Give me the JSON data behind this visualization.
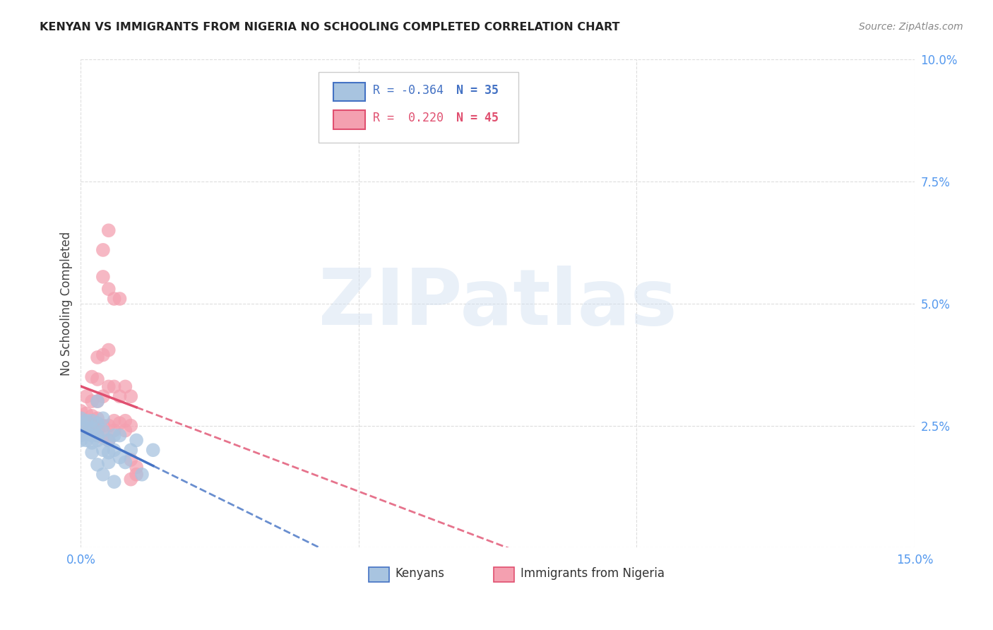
{
  "title": "KENYAN VS IMMIGRANTS FROM NIGERIA NO SCHOOLING COMPLETED CORRELATION CHART",
  "source": "Source: ZipAtlas.com",
  "ylabel": "No Schooling Completed",
  "xlabel_kenyans": "Kenyans",
  "xlabel_nigeria": "Immigrants from Nigeria",
  "xlim": [
    0.0,
    0.15
  ],
  "ylim": [
    0.0,
    0.1
  ],
  "xtick_vals": [
    0.0,
    0.05,
    0.1,
    0.15
  ],
  "xtick_labels": [
    "0.0%",
    "",
    "",
    "15.0%"
  ],
  "ytick_vals": [
    0.0,
    0.025,
    0.05,
    0.075,
    0.1
  ],
  "ytick_labels": [
    "",
    "2.5%",
    "5.0%",
    "7.5%",
    "10.0%"
  ],
  "R_kenya": -0.364,
  "N_kenya": 35,
  "R_nigeria": 0.22,
  "N_nigeria": 45,
  "kenya_color": "#a8c4e0",
  "nigeria_color": "#f4a0b0",
  "kenya_line_color": "#4472c4",
  "nigeria_line_color": "#e05070",
  "kenya_scatter": [
    [
      0.0,
      0.0265
    ],
    [
      0.0,
      0.0255
    ],
    [
      0.0,
      0.023
    ],
    [
      0.0,
      0.022
    ],
    [
      0.001,
      0.026
    ],
    [
      0.001,
      0.0245
    ],
    [
      0.001,
      0.0235
    ],
    [
      0.001,
      0.022
    ],
    [
      0.002,
      0.026
    ],
    [
      0.002,
      0.0245
    ],
    [
      0.002,
      0.023
    ],
    [
      0.002,
      0.0215
    ],
    [
      0.002,
      0.0195
    ],
    [
      0.003,
      0.03
    ],
    [
      0.003,
      0.0255
    ],
    [
      0.003,
      0.023
    ],
    [
      0.003,
      0.022
    ],
    [
      0.003,
      0.017
    ],
    [
      0.004,
      0.0265
    ],
    [
      0.004,
      0.024
    ],
    [
      0.004,
      0.02
    ],
    [
      0.004,
      0.015
    ],
    [
      0.005,
      0.022
    ],
    [
      0.005,
      0.0195
    ],
    [
      0.005,
      0.0175
    ],
    [
      0.006,
      0.023
    ],
    [
      0.006,
      0.02
    ],
    [
      0.006,
      0.0135
    ],
    [
      0.007,
      0.023
    ],
    [
      0.007,
      0.0185
    ],
    [
      0.008,
      0.0175
    ],
    [
      0.009,
      0.02
    ],
    [
      0.01,
      0.022
    ],
    [
      0.011,
      0.015
    ],
    [
      0.013,
      0.02
    ]
  ],
  "nigeria_scatter": [
    [
      0.0,
      0.028
    ],
    [
      0.0,
      0.0265
    ],
    [
      0.0,
      0.025
    ],
    [
      0.0,
      0.024
    ],
    [
      0.001,
      0.031
    ],
    [
      0.001,
      0.0275
    ],
    [
      0.001,
      0.0255
    ],
    [
      0.002,
      0.035
    ],
    [
      0.002,
      0.03
    ],
    [
      0.002,
      0.027
    ],
    [
      0.002,
      0.025
    ],
    [
      0.003,
      0.039
    ],
    [
      0.003,
      0.0345
    ],
    [
      0.003,
      0.03
    ],
    [
      0.003,
      0.0265
    ],
    [
      0.003,
      0.024
    ],
    [
      0.003,
      0.023
    ],
    [
      0.004,
      0.061
    ],
    [
      0.004,
      0.0555
    ],
    [
      0.004,
      0.0395
    ],
    [
      0.004,
      0.031
    ],
    [
      0.004,
      0.025
    ],
    [
      0.004,
      0.0225
    ],
    [
      0.005,
      0.065
    ],
    [
      0.005,
      0.053
    ],
    [
      0.005,
      0.0405
    ],
    [
      0.005,
      0.033
    ],
    [
      0.005,
      0.025
    ],
    [
      0.005,
      0.022
    ],
    [
      0.006,
      0.051
    ],
    [
      0.006,
      0.033
    ],
    [
      0.006,
      0.026
    ],
    [
      0.006,
      0.024
    ],
    [
      0.007,
      0.051
    ],
    [
      0.007,
      0.031
    ],
    [
      0.007,
      0.0255
    ],
    [
      0.008,
      0.033
    ],
    [
      0.008,
      0.026
    ],
    [
      0.008,
      0.024
    ],
    [
      0.009,
      0.031
    ],
    [
      0.009,
      0.025
    ],
    [
      0.009,
      0.018
    ],
    [
      0.009,
      0.014
    ],
    [
      0.01,
      0.0165
    ],
    [
      0.01,
      0.015
    ]
  ],
  "kenya_line_x0": 0.0,
  "kenya_line_x_solid_end": 0.013,
  "kenya_line_x1": 0.15,
  "nigeria_line_x0": 0.0,
  "nigeria_line_x_solid_end": 0.01,
  "nigeria_line_x1": 0.15,
  "background_color": "#ffffff",
  "grid_color": "#dddddd",
  "watermark_text": "ZIPatlas",
  "title_fontsize": 11.5,
  "source_fontsize": 10,
  "tick_fontsize": 12,
  "ylabel_fontsize": 12
}
